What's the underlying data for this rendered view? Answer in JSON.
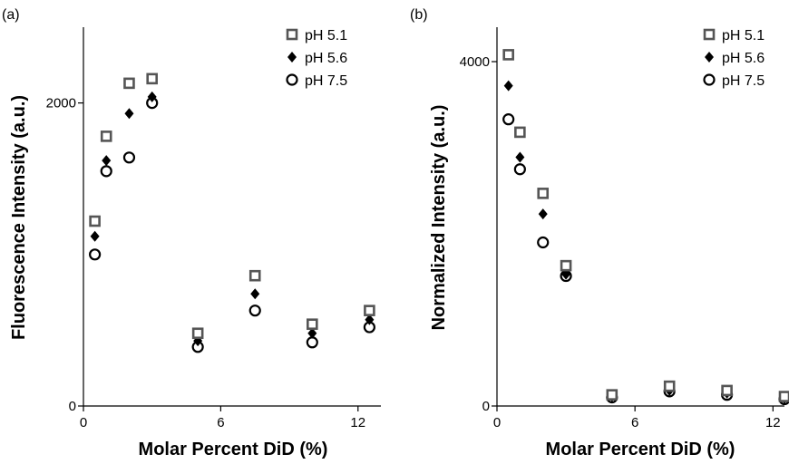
{
  "chart_data": [
    {
      "type": "scatter",
      "panel_label": "(a)",
      "title": "",
      "xlabel": "Molar Percent DiD (%)",
      "ylabel": "Fluorescence Intensity (a.u.)",
      "xlim": [
        0,
        13
      ],
      "ylim": [
        0,
        2500
      ],
      "x_ticks": [
        0,
        6,
        12
      ],
      "y_ticks": [
        0,
        2000
      ],
      "legend_position": "top-right",
      "grid": false,
      "series": [
        {
          "name": "pH 5.1",
          "marker": "square",
          "x": [
            0.5,
            1,
            2,
            3,
            5,
            7.5,
            10,
            12.5
          ],
          "y": [
            1220,
            1780,
            2130,
            2160,
            480,
            860,
            540,
            630
          ]
        },
        {
          "name": "pH 5.6",
          "marker": "diamond",
          "x": [
            0.5,
            1,
            2,
            3,
            5,
            7.5,
            10,
            12.5
          ],
          "y": [
            1120,
            1620,
            1930,
            2040,
            430,
            740,
            480,
            570
          ]
        },
        {
          "name": "pH 7.5",
          "marker": "circle",
          "x": [
            0.5,
            1,
            2,
            3,
            5,
            7.5,
            10,
            12.5
          ],
          "y": [
            1000,
            1550,
            1640,
            2000,
            390,
            630,
            420,
            520
          ]
        }
      ]
    },
    {
      "type": "scatter",
      "panel_label": "(b)",
      "title": "",
      "xlabel": "Molar Percent DiD (%)",
      "ylabel": "Normalized Intensity (a.u.)",
      "xlim": [
        0,
        12.5
      ],
      "ylim": [
        0,
        4400
      ],
      "x_ticks": [
        0,
        6,
        12
      ],
      "y_ticks": [
        0,
        4000
      ],
      "legend_position": "top-right",
      "grid": false,
      "series": [
        {
          "name": "pH 5.1",
          "marker": "square",
          "x": [
            0.5,
            1,
            2,
            3,
            5,
            7.5,
            10,
            12.5
          ],
          "y": [
            4080,
            3180,
            2470,
            1630,
            130,
            230,
            180,
            110
          ]
        },
        {
          "name": "pH 5.6",
          "marker": "diamond",
          "x": [
            0.5,
            1,
            2,
            3,
            5,
            7.5,
            10,
            12.5
          ],
          "y": [
            3720,
            2890,
            2230,
            1530,
            110,
            180,
            150,
            90
          ]
        },
        {
          "name": "pH 7.5",
          "marker": "circle",
          "x": [
            0.5,
            1,
            2,
            3,
            5,
            7.5,
            10,
            12.5
          ],
          "y": [
            3330,
            2750,
            1900,
            1510,
            100,
            170,
            130,
            80
          ]
        }
      ]
    }
  ]
}
